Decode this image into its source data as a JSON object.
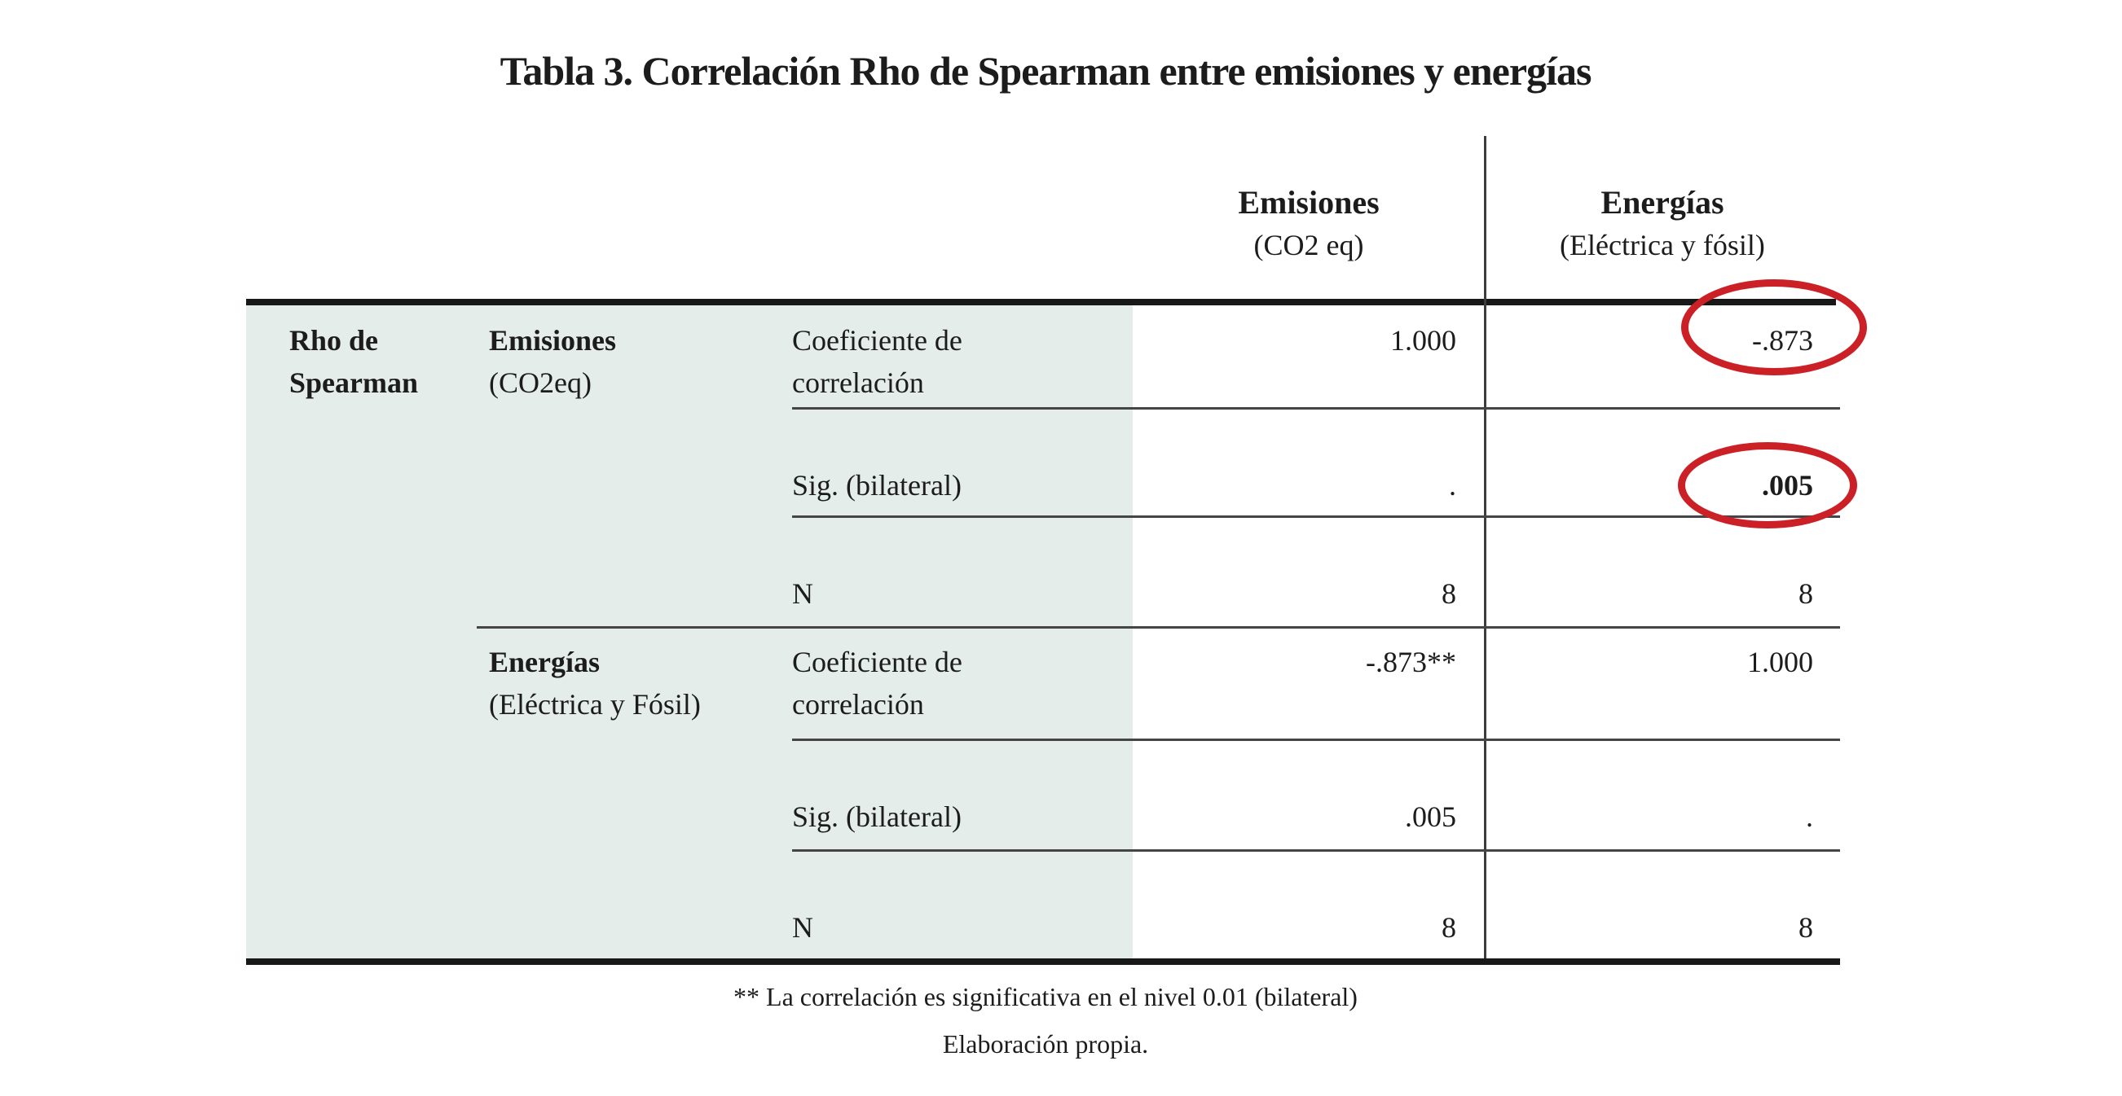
{
  "title": "Tabla 3. Correlación Rho de Spearman entre emisiones y energías",
  "table": {
    "corner_label": "Rho de Spearman",
    "column_headers": [
      {
        "title": "Emisiones",
        "subtitle": "(CO2 eq)"
      },
      {
        "title": "Energías",
        "subtitle": "(Eléctrica y fósil)"
      }
    ],
    "groups": [
      {
        "variable": "Emisiones",
        "variable_sub": "(CO2eq)",
        "rows": [
          {
            "label": "Coeficiente de correlación",
            "values": [
              "1.000",
              "-.873"
            ]
          },
          {
            "label": "Sig. (bilateral)",
            "values": [
              ".",
              ".005"
            ]
          },
          {
            "label": "N",
            "values": [
              "8",
              "8"
            ]
          }
        ]
      },
      {
        "variable": "Energías",
        "variable_sub": "(Eléctrica y Fósil)",
        "rows": [
          {
            "label": "Coeficiente de correlación",
            "values": [
              "-.873**",
              "1.000"
            ]
          },
          {
            "label": "Sig. (bilateral)",
            "values": [
              ".005",
              "."
            ]
          },
          {
            "label": "N",
            "values": [
              "8",
              "8"
            ]
          }
        ]
      }
    ]
  },
  "annotations": {
    "circle_color": "#cb2026",
    "circled_values": [
      "-.873",
      ".005"
    ]
  },
  "footnote": "** La correlación es significativa en el nivel 0.01 (bilateral)",
  "source": "Elaboración propia.",
  "colors": {
    "highlight_panel": "#e4ede9",
    "text": "#1c1c1c"
  }
}
